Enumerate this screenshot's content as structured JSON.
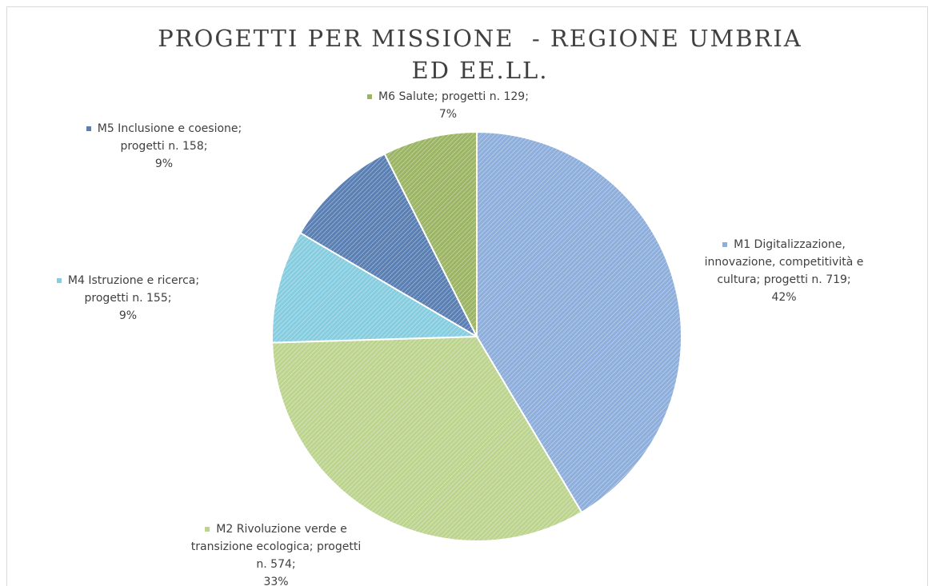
{
  "chart_data": {
    "type": "pie",
    "title": "PROGETTI PER MISSIONE  - REGIONE UMBRIA ED EE.LL.",
    "categories": [
      "M1 Digitalizzazione, innovazione, competitività e cultura",
      "M2 Rivoluzione verde e transizione ecologica",
      "M4 Istruzione e ricerca",
      "M5 Inclusione e coesione",
      "M6 Salute"
    ],
    "values": [
      719,
      574,
      155,
      158,
      129
    ],
    "value_labels": [
      "progetti n. 719",
      "progetti n. 574",
      "progetti n. 155",
      "progetti n. 158",
      "progetti n. 129"
    ],
    "percentages": [
      42,
      33,
      9,
      9,
      7
    ],
    "percentage_labels": [
      "42%",
      "33%",
      "9%",
      "9%",
      "7%"
    ],
    "label_separator": ";",
    "colors": [
      "#8eaedb",
      "#bcd48e",
      "#86cde0",
      "#5a7fb3",
      "#9bb564"
    ],
    "hatched": true
  }
}
